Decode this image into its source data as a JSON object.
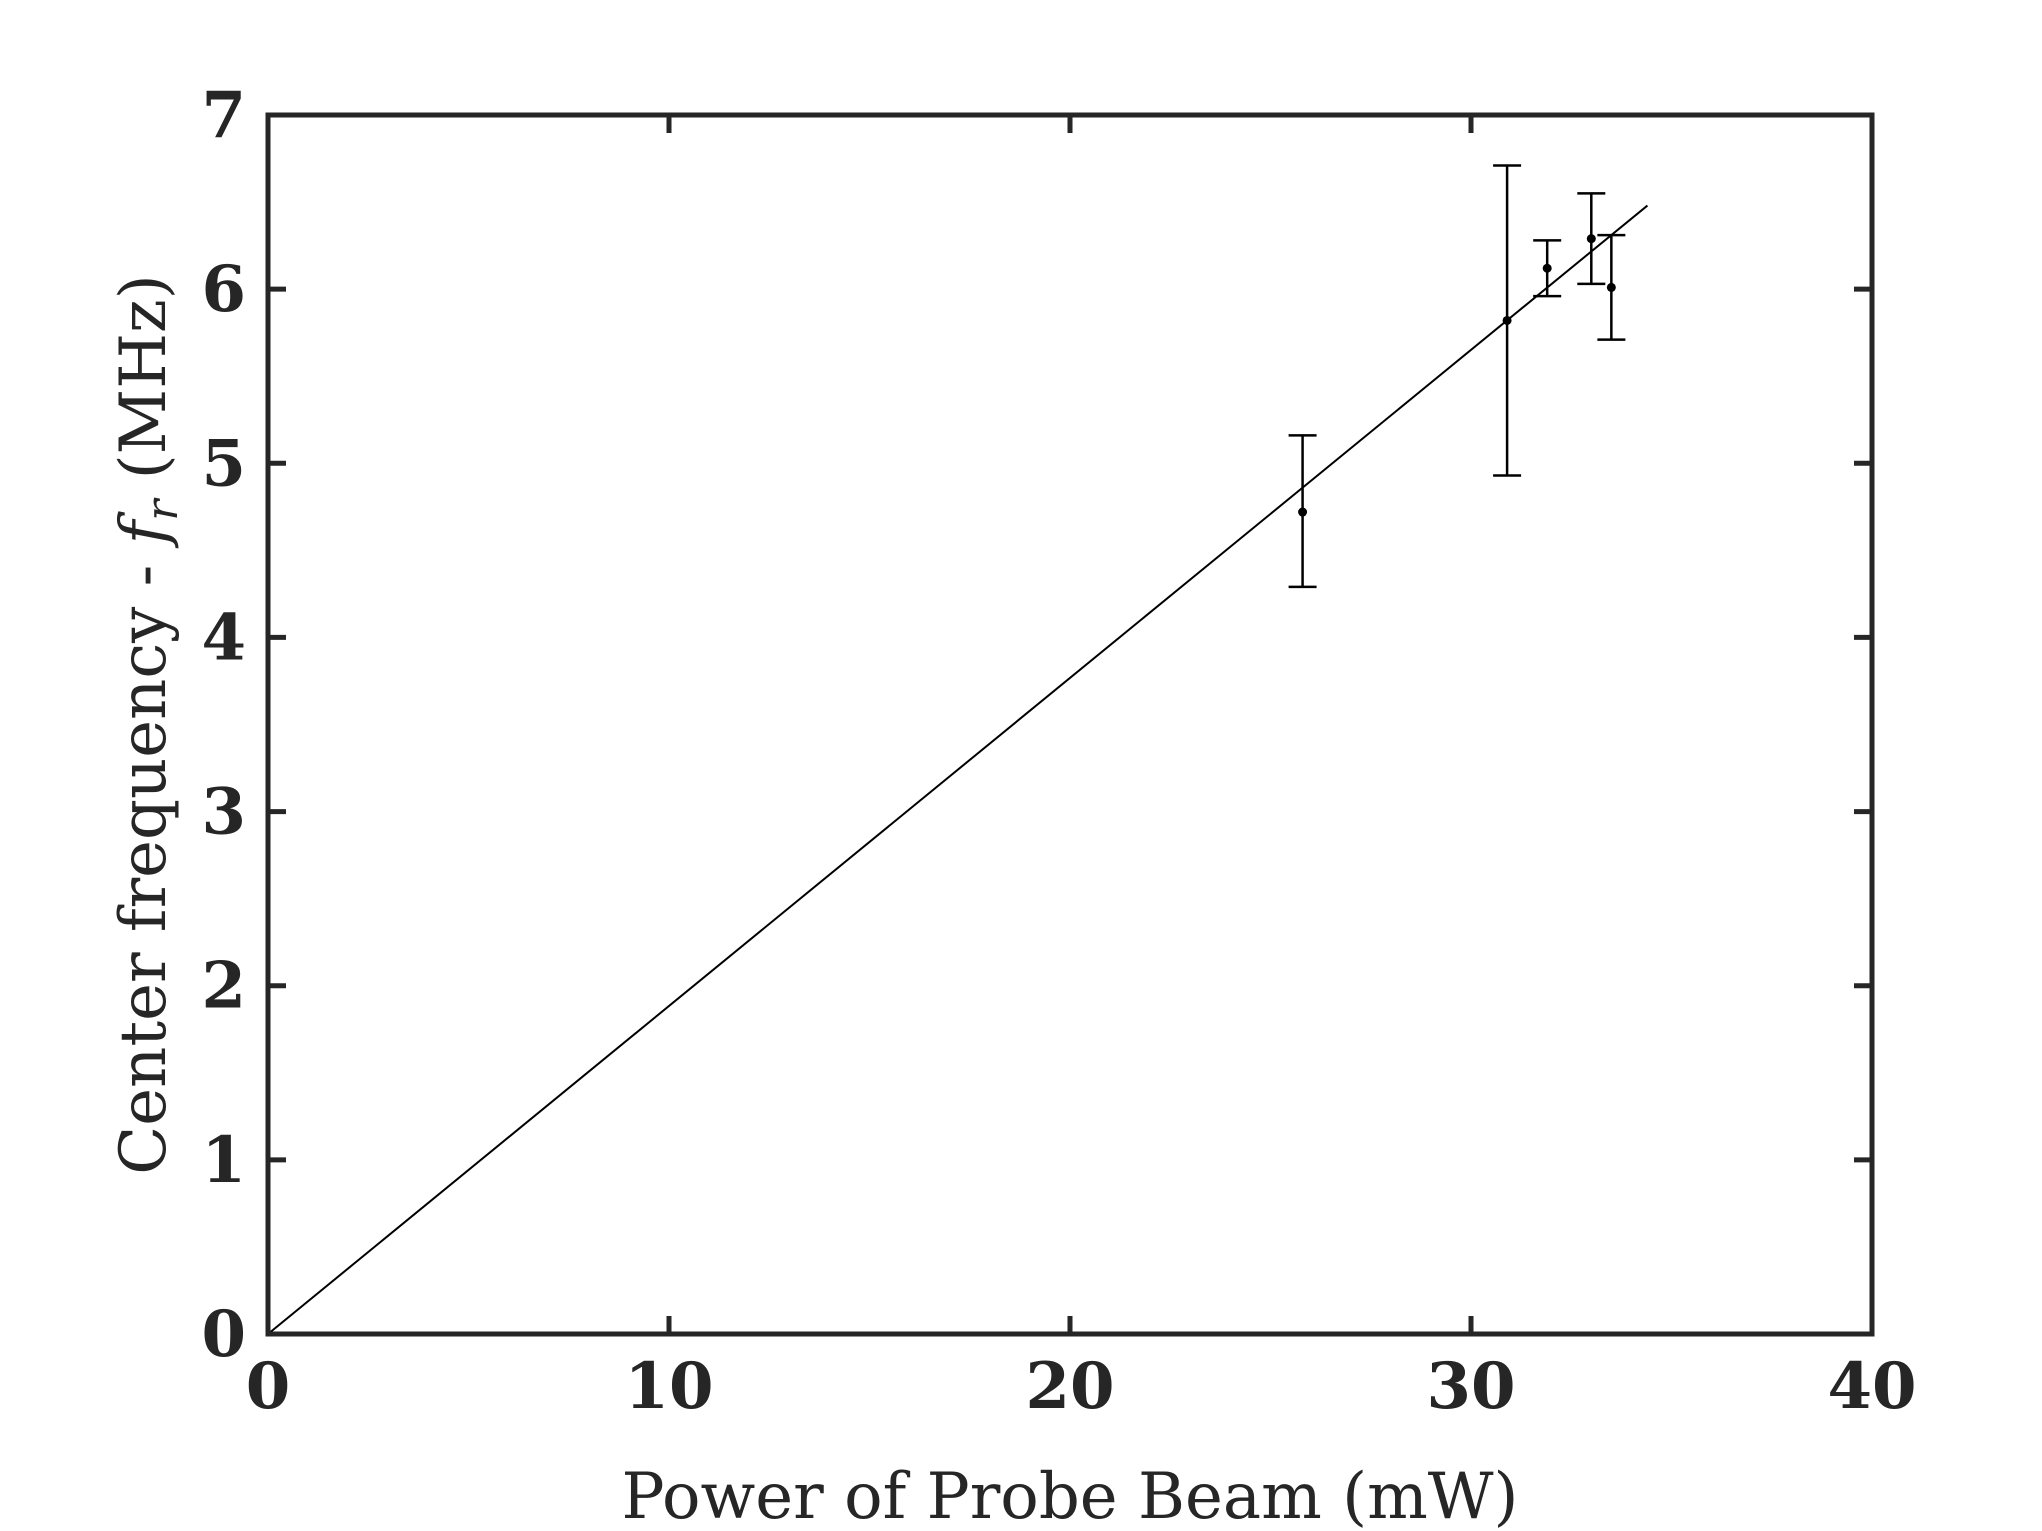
{
  "chart_data": {
    "type": "scatter",
    "title": "",
    "xlabel": "Power of Probe Beam (mW)",
    "ylabel": {
      "prefix": "Center frequency - ",
      "symbol": "f",
      "subscript": "r",
      "suffix": " (MHz)"
    },
    "xlim": [
      0,
      40
    ],
    "ylim": [
      0,
      7
    ],
    "xticks": [
      0,
      10,
      20,
      30,
      40
    ],
    "yticks": [
      0,
      1,
      2,
      3,
      4,
      5,
      6,
      7
    ],
    "grid": false,
    "legend": "none",
    "series": [
      {
        "kind": "errorbar",
        "points": [
          {
            "x": 25.8,
            "y": 4.72,
            "err_low": 0.43,
            "err_high": 0.44
          },
          {
            "x": 30.9,
            "y": 5.82,
            "err_low": 0.89,
            "err_high": 0.89
          },
          {
            "x": 31.9,
            "y": 6.12,
            "err_low": 0.16,
            "err_high": 0.16
          },
          {
            "x": 33.0,
            "y": 6.29,
            "err_low": 0.26,
            "err_high": 0.26
          },
          {
            "x": 33.5,
            "y": 6.01,
            "err_low": 0.3,
            "err_high": 0.3
          }
        ]
      },
      {
        "kind": "fit-line",
        "x": [
          0,
          34.4
        ],
        "y": [
          0,
          6.48
        ]
      }
    ],
    "colors": {
      "axes": "#262626",
      "data": "#000000",
      "background": "#ffffff"
    }
  }
}
